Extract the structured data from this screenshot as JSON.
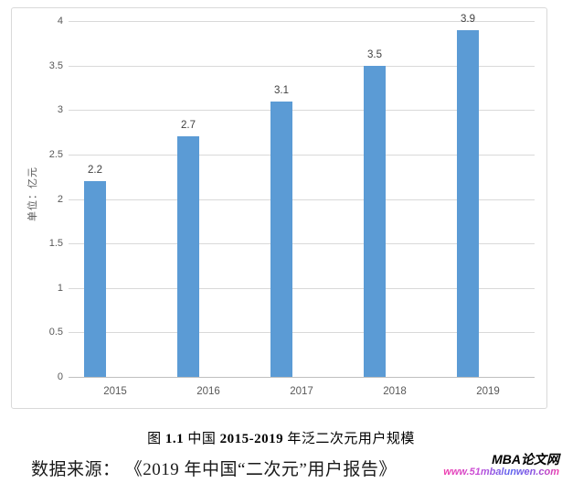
{
  "chart_data": {
    "type": "bar",
    "categories": [
      "2015",
      "2016",
      "2017",
      "2018",
      "2019"
    ],
    "values": [
      2.2,
      2.7,
      3.1,
      3.5,
      3.9
    ],
    "data_labels": [
      "2.2",
      "2.7",
      "3.1",
      "3.5",
      "3.9"
    ],
    "title": "",
    "xlabel": "",
    "ylabel": "单位：亿元",
    "ylim": [
      0,
      4
    ],
    "yticks": [
      "0",
      "0.5",
      "1",
      "1.5",
      "2",
      "2.5",
      "3",
      "3.5",
      "4"
    ],
    "grid": true,
    "legend": "none",
    "bar_color": "#5b9bd5"
  },
  "caption": {
    "parts": [
      {
        "text": "图 ",
        "bold": false
      },
      {
        "text": "1.1",
        "bold": true
      },
      {
        "text": "  中国 ",
        "bold": false
      },
      {
        "text": "2015-2019",
        "bold": true
      },
      {
        "text": " 年泛二次元用户规模",
        "bold": false
      }
    ]
  },
  "source_line": "数据来源： 《2019 年中国“二次元”用户报告》",
  "watermark": {
    "title": "MBA论文网",
    "url": "www.51mbalunwen.com"
  },
  "colors": {
    "bar": "#5b9bd5",
    "gridline": "#d9d9d9",
    "axis_line": "#bfbfbf",
    "tick_label": "#595959",
    "data_label": "#404040",
    "frame_border": "#d9d9d9"
  }
}
